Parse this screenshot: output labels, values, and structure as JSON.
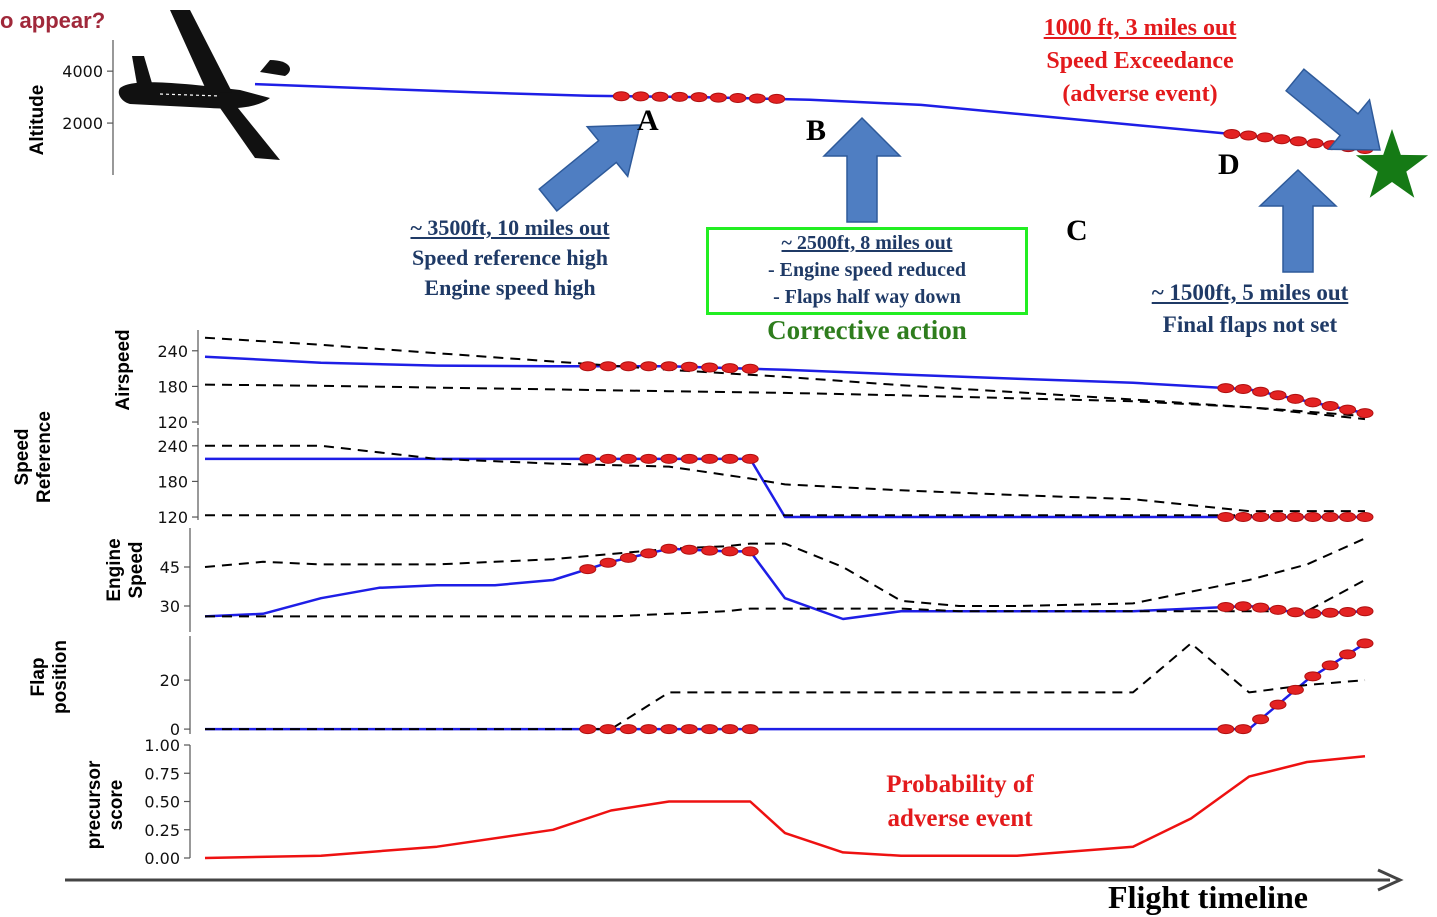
{
  "header_text": "o appear?",
  "colors": {
    "series": "#1e1ee6",
    "threshold": "#000000",
    "marker": "#e32222",
    "probability": "#ee1111",
    "arrow": "#4f7ec2",
    "arrow_edge": "#2e5a9a",
    "star": "#157a15",
    "box": "#22ee22"
  },
  "annotations": {
    "a": {
      "line1": "~ 3500ft, 10 miles out",
      "line2": "Speed reference high",
      "line3": "Engine speed high"
    },
    "b": {
      "line1": "~ 2500ft, 8 miles out",
      "line2": "- Engine speed reduced",
      "line3": "- Flaps half way down",
      "caption": "Corrective action"
    },
    "c": {
      "line1": "~ 1500ft, 5 miles out",
      "line2": "Final flaps not set"
    },
    "event": {
      "line1": "1000 ft, 3 miles out",
      "line2": "Speed Exceedance",
      "line3": "(adverse event)"
    },
    "probability": {
      "line1": "Probability of",
      "line2": "adverse event"
    }
  },
  "point_letters": [
    "A",
    "B",
    "C",
    "D"
  ],
  "timeline_label": "Flight timeline",
  "icons": [
    "airplane-icon",
    "star-icon",
    "arrow-icon"
  ],
  "chart_data": [
    {
      "type": "line",
      "ylabel": "Altitude",
      "yticks": [
        2000,
        4000
      ],
      "ylim": [
        0,
        5200
      ],
      "x": [
        0,
        10,
        20,
        30,
        40,
        50,
        60,
        70,
        80,
        90,
        100
      ],
      "series": [
        {
          "values": [
            3500,
            3340,
            3180,
            3050,
            3000,
            2900,
            2700,
            2300,
            1900,
            1500,
            1000
          ]
        }
      ],
      "highlight_x": [
        [
          33,
          47
        ],
        [
          88,
          100
        ]
      ]
    },
    {
      "type": "line",
      "ylabel": "Airspeed",
      "yticks": [
        120,
        180,
        240
      ],
      "ylim": [
        115,
        275
      ],
      "x": [
        0,
        10,
        20,
        30,
        40,
        50,
        60,
        70,
        80,
        90,
        100
      ],
      "series": [
        {
          "values": [
            230,
            220,
            215,
            214,
            214,
            208,
            200,
            193,
            186,
            175,
            135
          ]
        },
        {
          "values": [
            262,
            250,
            236,
            222,
            208,
            196,
            182,
            170,
            158,
            145,
            125
          ]
        },
        {
          "values": [
            183,
            181,
            178,
            175,
            172,
            169,
            165,
            160,
            155,
            145,
            130
          ]
        }
      ],
      "highlight_x": [
        [
          33,
          47
        ],
        [
          88,
          100
        ]
      ]
    },
    {
      "type": "line",
      "ylabel": "Speed Reference",
      "yticks": [
        120,
        180,
        240
      ],
      "ylim": [
        115,
        270
      ],
      "x": [
        0,
        10,
        20,
        30,
        40,
        47,
        50,
        60,
        70,
        80,
        90,
        100
      ],
      "series": [
        {
          "values": [
            218,
            218,
            218,
            218,
            218,
            218,
            120,
            120,
            120,
            120,
            120,
            120
          ]
        },
        {
          "values": [
            240,
            240,
            218,
            210,
            205,
            185,
            175,
            165,
            157,
            150,
            130,
            130
          ]
        },
        {
          "values": [
            123,
            123,
            123,
            123,
            123,
            123,
            123,
            123,
            123,
            123,
            123,
            123
          ]
        }
      ],
      "highlight_x": [
        [
          33,
          47
        ],
        [
          88,
          100
        ]
      ]
    },
    {
      "type": "line",
      "ylabel": "Engine Speed",
      "yticks": [
        30,
        45
      ],
      "ylim": [
        20,
        60
      ],
      "x": [
        0,
        5,
        10,
        15,
        20,
        25,
        30,
        35,
        40,
        45,
        47,
        50,
        55,
        60,
        65,
        70,
        80,
        90,
        95,
        100
      ],
      "series": [
        {
          "values": [
            26,
            27,
            33,
            37,
            38,
            38,
            40,
            47,
            52,
            51,
            51,
            33,
            25,
            28,
            28,
            28,
            28,
            30,
            27,
            28
          ]
        },
        {
          "values": [
            45,
            47,
            46,
            46,
            46,
            47,
            48,
            50,
            52,
            53,
            54,
            54,
            45,
            32,
            30,
            30,
            31,
            40,
            46,
            56
          ]
        },
        {
          "values": [
            26,
            26,
            26,
            26,
            26,
            26,
            26,
            26,
            27,
            28,
            29,
            29,
            29,
            29,
            28,
            28,
            28,
            28,
            28,
            40
          ]
        }
      ],
      "highlight_x": [
        [
          33,
          47
        ],
        [
          88,
          100
        ]
      ]
    },
    {
      "type": "line",
      "ylabel": "Flap position",
      "yticks": [
        0,
        20
      ],
      "ylim": [
        -2,
        38
      ],
      "x": [
        0,
        10,
        20,
        30,
        35,
        40,
        45,
        50,
        60,
        70,
        80,
        85,
        90,
        95,
        100
      ],
      "series": [
        {
          "values": [
            0,
            0,
            0,
            0,
            0,
            0,
            0,
            0,
            0,
            0,
            0,
            0,
            0,
            20,
            35
          ]
        },
        {
          "values": [
            0,
            0,
            0,
            0,
            0,
            15,
            15,
            15,
            15,
            15,
            15,
            35,
            15,
            18,
            20
          ]
        }
      ],
      "highlight_x": [
        [
          33,
          47
        ],
        [
          88,
          100
        ]
      ]
    },
    {
      "type": "line",
      "ylabel": "precursor score",
      "yticks": [
        0.0,
        0.25,
        0.5,
        0.75,
        1.0
      ],
      "ylim": [
        0,
        1
      ],
      "x": [
        0,
        10,
        20,
        30,
        35,
        40,
        47,
        50,
        55,
        60,
        70,
        80,
        85,
        90,
        95,
        100
      ],
      "series": [
        {
          "name": "Probability of adverse event",
          "values": [
            0,
            0.02,
            0.1,
            0.25,
            0.42,
            0.5,
            0.5,
            0.22,
            0.05,
            0.02,
            0.02,
            0.1,
            0.35,
            0.72,
            0.85,
            0.9
          ]
        }
      ]
    }
  ]
}
